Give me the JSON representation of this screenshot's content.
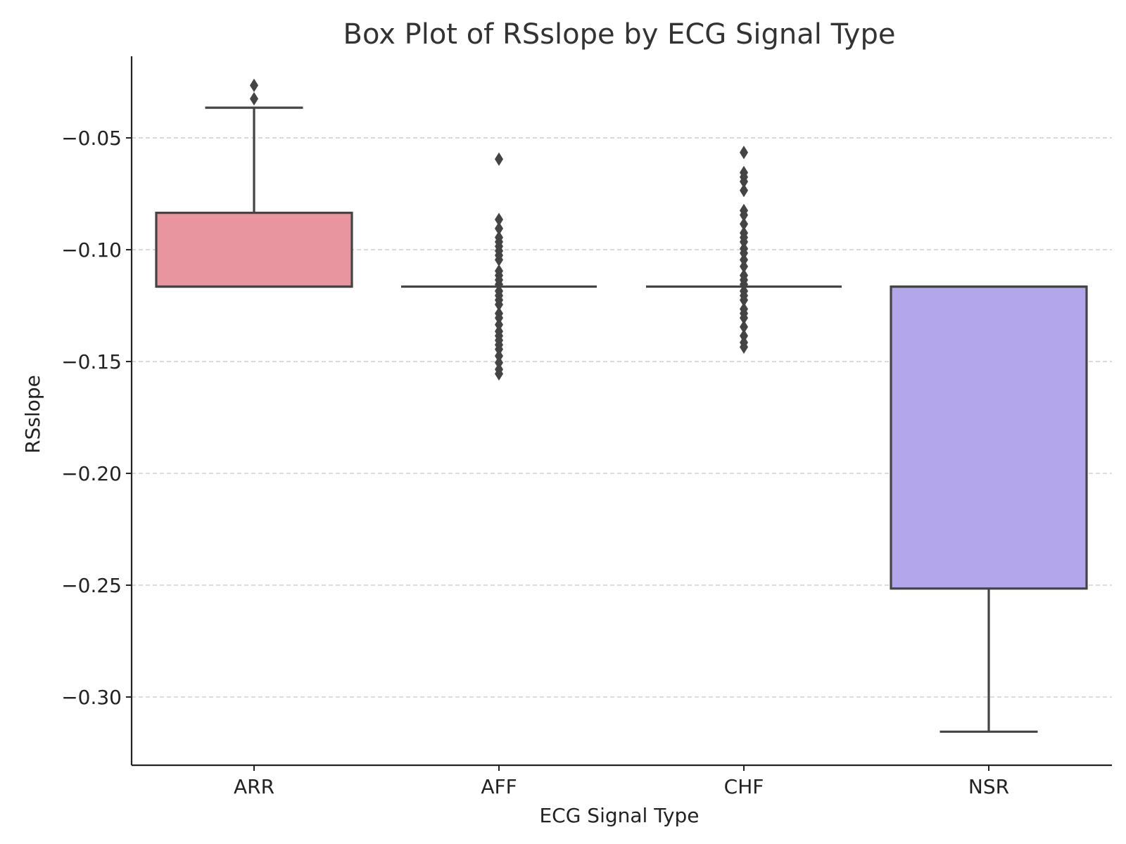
{
  "chart_data": {
    "type": "box",
    "title": "Box Plot of RSslope by ECG Signal Type",
    "xlabel": "ECG Signal Type",
    "ylabel": "RSslope",
    "ylim": [
      -0.3305,
      -0.0135
    ],
    "yticks": [
      -0.05,
      -0.1,
      -0.15,
      -0.2,
      -0.25,
      -0.3
    ],
    "ytick_labels": [
      "−0.05",
      "−0.10",
      "−0.15",
      "−0.20",
      "−0.25",
      "−0.30"
    ],
    "grid": "horizontal dashed",
    "categories": [
      "ARR",
      "AFF",
      "CHF",
      "NSR"
    ],
    "colors": {
      "ARR": "#e8959f",
      "AFF": "#7fbf7f",
      "CHF": "#70b6d8",
      "NSR": "#b3a6ea",
      "line": "#444444",
      "grid": "#c8c8c8",
      "axis": "#222222"
    },
    "boxes": [
      {
        "category": "ARR",
        "q1": -0.1165,
        "median": -0.1165,
        "q3": -0.0835,
        "whisker_low": -0.1165,
        "whisker_high": -0.0365,
        "outliers": [
          -0.0265,
          -0.0325
        ]
      },
      {
        "category": "AFF",
        "q1": -0.1165,
        "median": -0.1165,
        "q3": -0.1165,
        "whisker_low": -0.1165,
        "whisker_high": -0.1165,
        "outliers": [
          -0.0595,
          -0.0865,
          -0.0905,
          -0.0945,
          -0.0965,
          -0.0985,
          -0.1005,
          -0.1025,
          -0.1045,
          -0.1095,
          -0.1115,
          -0.1135,
          -0.1155,
          -0.1185,
          -0.1205,
          -0.1225,
          -0.1245,
          -0.1285,
          -0.1305,
          -0.1335,
          -0.1365,
          -0.1385,
          -0.1405,
          -0.1425,
          -0.1445,
          -0.1475,
          -0.1505,
          -0.1535,
          -0.1555
        ]
      },
      {
        "category": "CHF",
        "q1": -0.1165,
        "median": -0.1165,
        "q3": -0.1165,
        "whisker_low": -0.1165,
        "whisker_high": -0.1165,
        "outliers": [
          -0.0565,
          -0.0655,
          -0.0675,
          -0.0695,
          -0.0735,
          -0.0825,
          -0.0845,
          -0.0885,
          -0.0925,
          -0.0945,
          -0.0965,
          -0.0995,
          -0.1015,
          -0.1045,
          -0.1075,
          -0.1115,
          -0.1135,
          -0.1155,
          -0.1185,
          -0.1205,
          -0.1225,
          -0.1265,
          -0.1285,
          -0.1305,
          -0.1345,
          -0.1385,
          -0.1415,
          -0.1435
        ]
      },
      {
        "category": "NSR",
        "q1": -0.2515,
        "median": -0.1165,
        "q3": -0.1165,
        "whisker_low": -0.3155,
        "whisker_high": -0.1165,
        "outliers": []
      }
    ]
  }
}
